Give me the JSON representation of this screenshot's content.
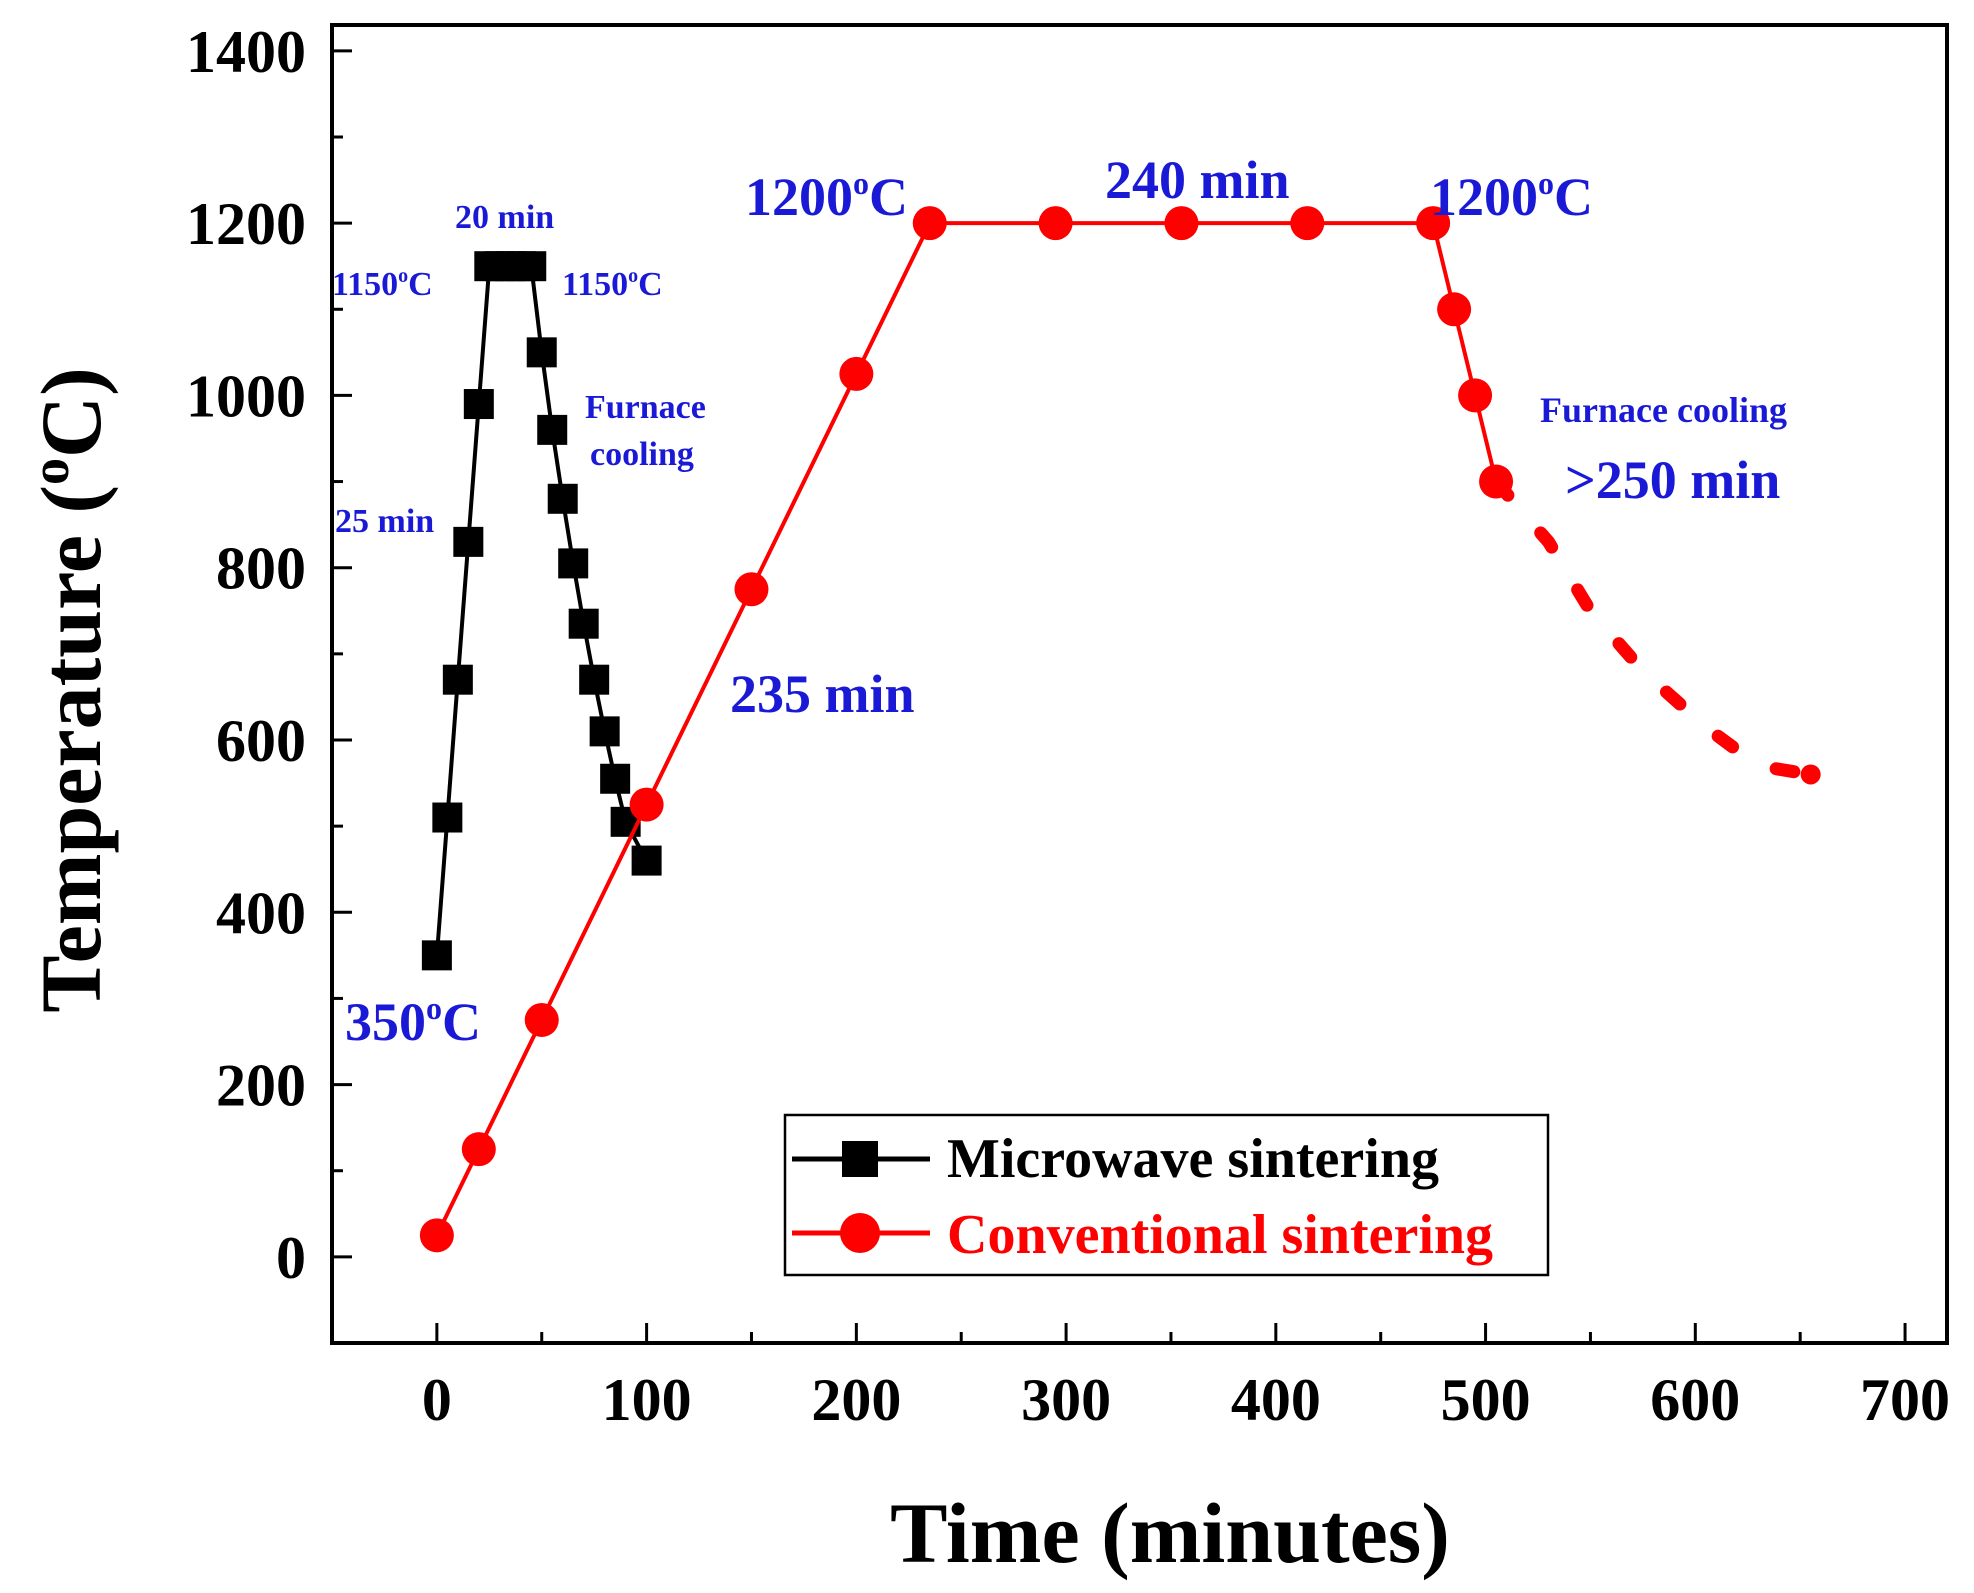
{
  "chart_data": {
    "type": "line",
    "title": "",
    "xlabel": "Time (minutes)",
    "ylabel_main": "Temperature (",
    "ylabel_sup": "o",
    "ylabel_end": "C)",
    "xlim": [
      -50,
      720
    ],
    "ylim": [
      -100,
      1430
    ],
    "xticks": [
      0,
      100,
      200,
      300,
      400,
      500,
      600,
      700
    ],
    "yticks": [
      0,
      200,
      400,
      600,
      800,
      1000,
      1200,
      1400
    ],
    "grid": false,
    "legend_position": "bottom-right",
    "series": [
      {
        "name": "Microwave sintering",
        "color": "#000000",
        "marker": "square",
        "x": [
          0,
          5,
          10,
          15,
          20,
          25,
          30,
          35,
          40,
          45,
          50,
          55,
          60,
          65,
          70,
          75,
          80,
          85,
          90,
          100
        ],
        "y": [
          350,
          510,
          670,
          830,
          990,
          1150,
          1150,
          1150,
          1150,
          1150,
          1050,
          960,
          880,
          805,
          735,
          670,
          610,
          555,
          505,
          460
        ]
      },
      {
        "name": "Conventional sintering",
        "color": "#ff0000",
        "marker": "circle",
        "x": [
          0,
          20,
          50,
          100,
          150,
          200,
          235,
          295,
          355,
          415,
          475,
          485,
          495,
          505
        ],
        "y": [
          25,
          125,
          275,
          525,
          775,
          1025,
          1200,
          1200,
          1200,
          1200,
          1200,
          1100,
          1000,
          900
        ],
        "dotted_tail": {
          "x": [
            505,
            530,
            550,
            575,
            605,
            630,
            655
          ],
          "y": [
            900,
            830,
            750,
            680,
            615,
            570,
            560
          ]
        }
      }
    ],
    "annotations": [
      {
        "id": "mw-start",
        "base": "350",
        "sup": "o",
        "tail": "C"
      },
      {
        "id": "mw-ramp",
        "text": "25 min"
      },
      {
        "id": "mw-hold",
        "text": "20 min"
      },
      {
        "id": "mw-peak-left",
        "base": "1150",
        "sup": "o",
        "tail": "C"
      },
      {
        "id": "mw-peak-right",
        "base": "1150",
        "sup": "o",
        "tail": "C"
      },
      {
        "id": "mw-cool-1",
        "text": "Furnace"
      },
      {
        "id": "mw-cool-2",
        "text": "cooling"
      },
      {
        "id": "cs-ramp",
        "text": "235 min"
      },
      {
        "id": "cs-peak-left",
        "base": "1200",
        "sup": "o",
        "tail": "C"
      },
      {
        "id": "cs-hold",
        "text": "240 min"
      },
      {
        "id": "cs-peak-right",
        "base": "1200",
        "sup": "o",
        "tail": "C"
      },
      {
        "id": "cs-cool",
        "text": "Furnace cooling"
      },
      {
        "id": "cs-cool-time",
        "text": ">250 min"
      }
    ],
    "colors": {
      "annotation": "#1a1ad6",
      "axis": "#000000"
    }
  }
}
